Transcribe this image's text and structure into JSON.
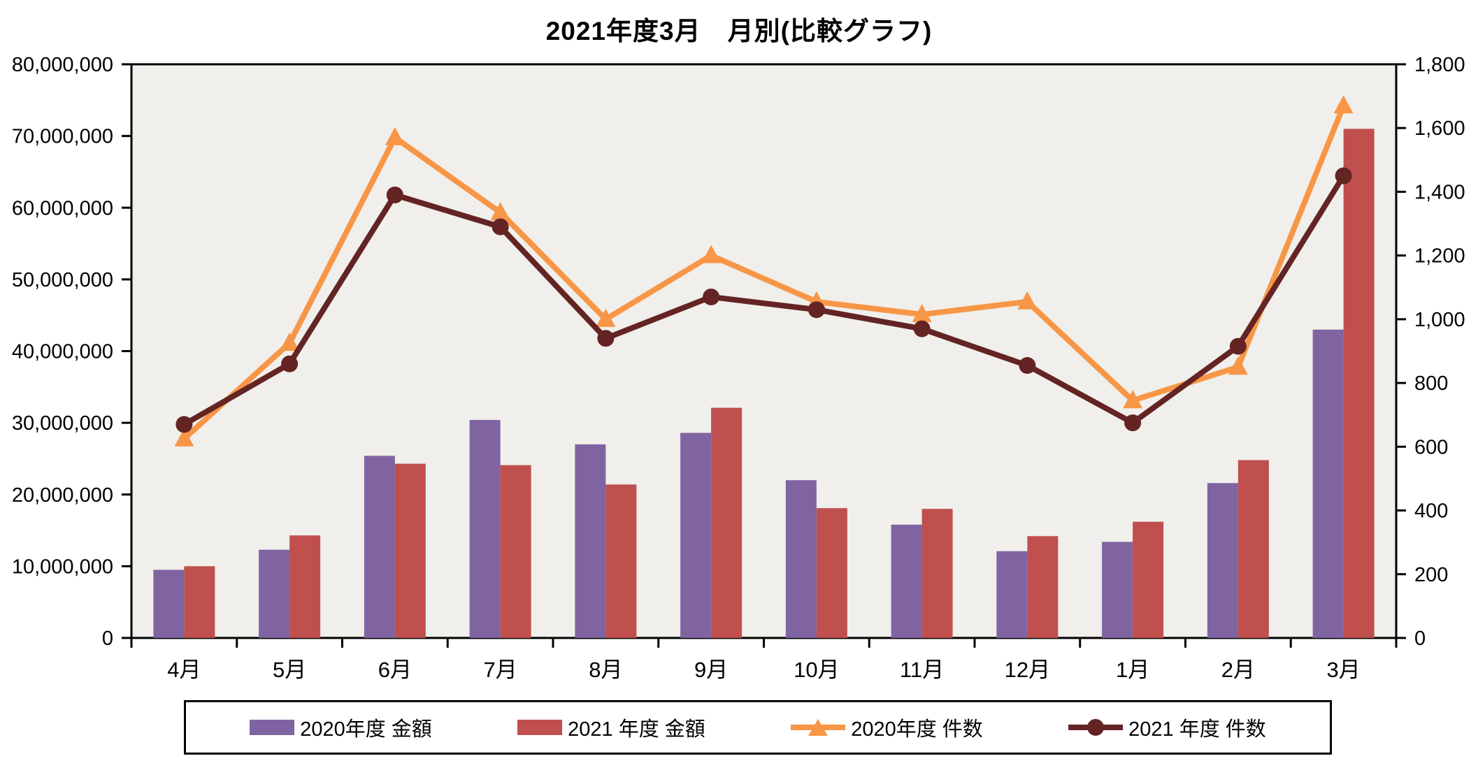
{
  "title": "2021年度3月　月別(比較グラフ)",
  "chart_data": {
    "type": "combo-bar-line",
    "title": "2021年度3月　月別(比較グラフ)",
    "categories": [
      "4月",
      "5月",
      "6月",
      "7月",
      "8月",
      "9月",
      "10月",
      "11月",
      "12月",
      "1月",
      "2月",
      "3月"
    ],
    "series": [
      {
        "name": "2020年度 金額",
        "type": "bar",
        "axis": "left",
        "color": "#8064A2",
        "marker": "rect",
        "values": [
          9500000,
          12300000,
          25400000,
          30400000,
          27000000,
          28600000,
          22000000,
          15800000,
          12100000,
          13400000,
          21600000,
          43000000
        ]
      },
      {
        "name": "2021 年度 金額",
        "type": "bar",
        "axis": "left",
        "color": "#C0504D",
        "marker": "rect",
        "values": [
          10000000,
          14300000,
          24300000,
          24100000,
          21400000,
          32100000,
          18100000,
          18000000,
          14200000,
          16200000,
          24800000,
          71000000
        ]
      },
      {
        "name": "2020年度 件数",
        "type": "line",
        "axis": "right",
        "color": "#F79646",
        "marker": "triangle",
        "values": [
          625,
          925,
          1570,
          1335,
          1000,
          1200,
          1055,
          1015,
          1055,
          745,
          850,
          1670
        ]
      },
      {
        "name": "2021 年度 件数",
        "type": "line",
        "axis": "right",
        "color": "#632423",
        "marker": "circle",
        "values": [
          670,
          860,
          1390,
          1290,
          940,
          1070,
          1030,
          970,
          855,
          675,
          915,
          1450
        ]
      }
    ],
    "left_axis": {
      "min": 0,
      "max": 80000000,
      "step": 10000000,
      "tick_labels": [
        "0",
        "10,000,000",
        "20,000,000",
        "30,000,000",
        "40,000,000",
        "50,000,000",
        "60,000,000",
        "70,000,000",
        "80,000,000"
      ]
    },
    "right_axis": {
      "min": 0,
      "max": 1800,
      "step": 200,
      "tick_labels": [
        "0",
        "200",
        "400",
        "600",
        "800",
        "1,000",
        "1,200",
        "1,400",
        "1,600",
        "1,800"
      ]
    },
    "grid": false,
    "legend_position": "bottom",
    "plot_bg": "#f0efeb",
    "axis_color": "#000000"
  }
}
